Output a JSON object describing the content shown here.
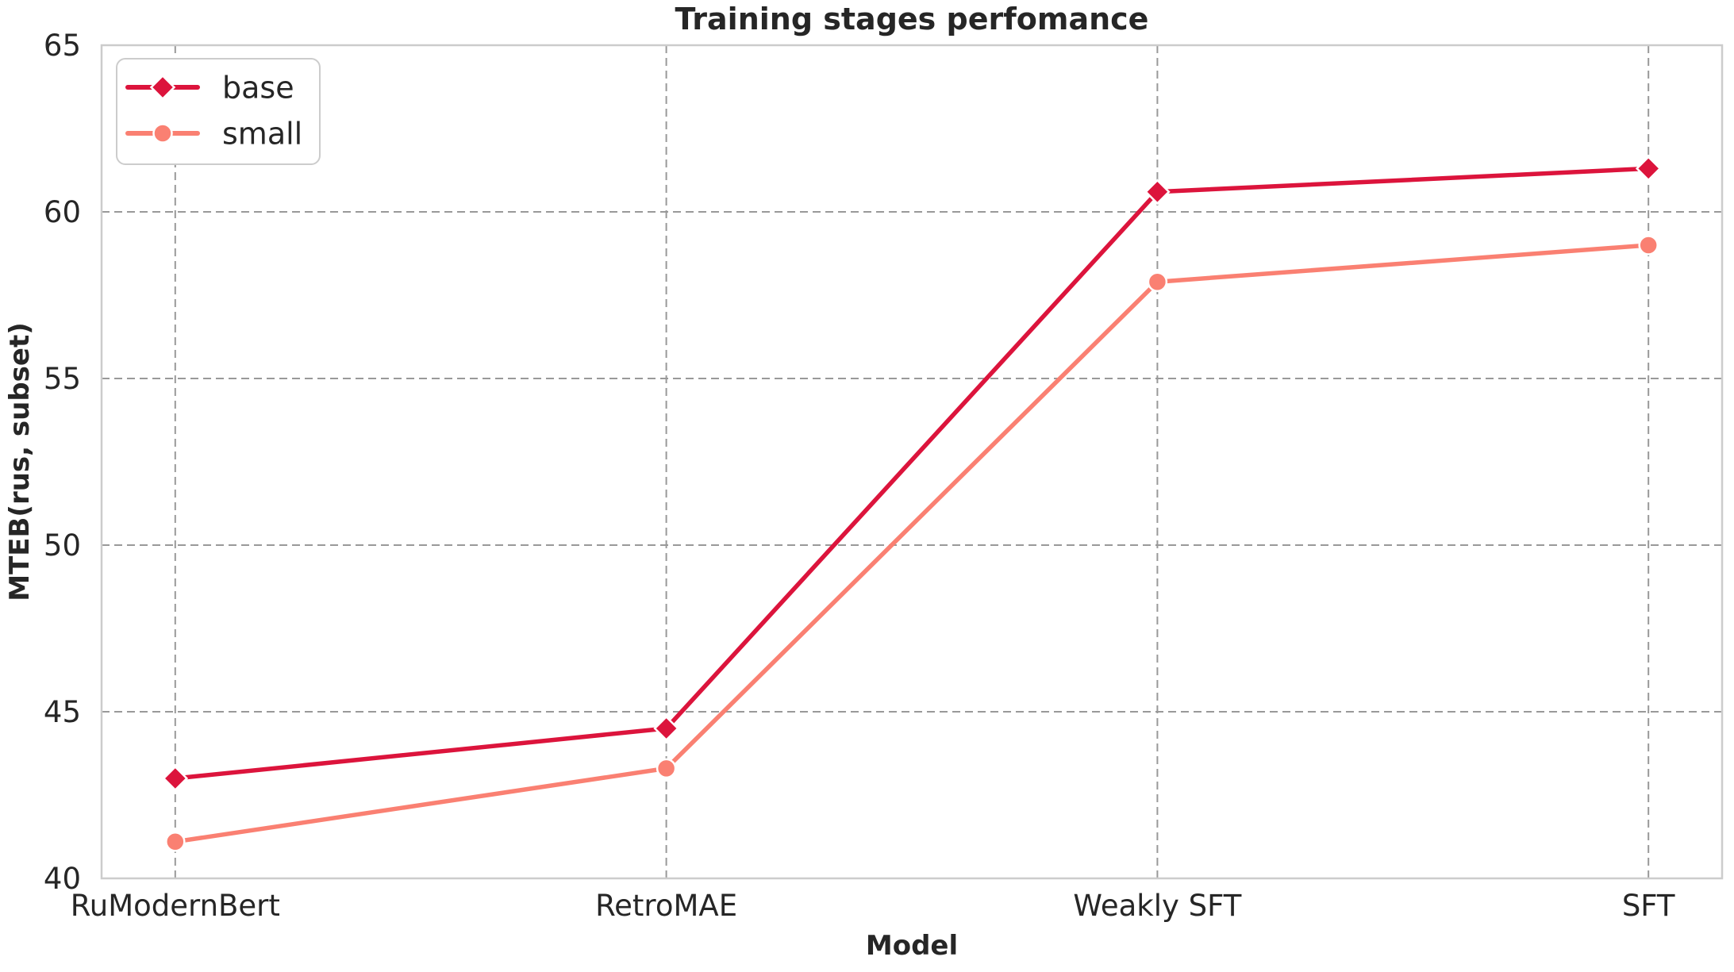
{
  "chart_data": {
    "type": "line",
    "title": "Training stages perfomance",
    "xlabel": "Model",
    "ylabel": "MTEB(rus, subset)",
    "categories": [
      "RuModernBert",
      "RetroMAE",
      "Weakly SFT",
      "SFT"
    ],
    "series": [
      {
        "name": "base",
        "marker": "diamond",
        "color": "#DC143C",
        "values": [
          43.0,
          44.5,
          60.6,
          61.3
        ]
      },
      {
        "name": "small",
        "marker": "circle",
        "color": "#FA8072",
        "values": [
          41.1,
          43.3,
          57.9,
          59.0
        ]
      }
    ],
    "ylim": [
      40,
      65
    ],
    "yticks": [
      40,
      45,
      50,
      55,
      60,
      65
    ],
    "grid": true,
    "grid_style": "dashed",
    "legend_position": "upper-left"
  },
  "colors": {
    "grid": "#999999",
    "spine": "#cccccc",
    "text": "#262626",
    "background": "#ffffff",
    "marker_edge": "#ffffff"
  }
}
